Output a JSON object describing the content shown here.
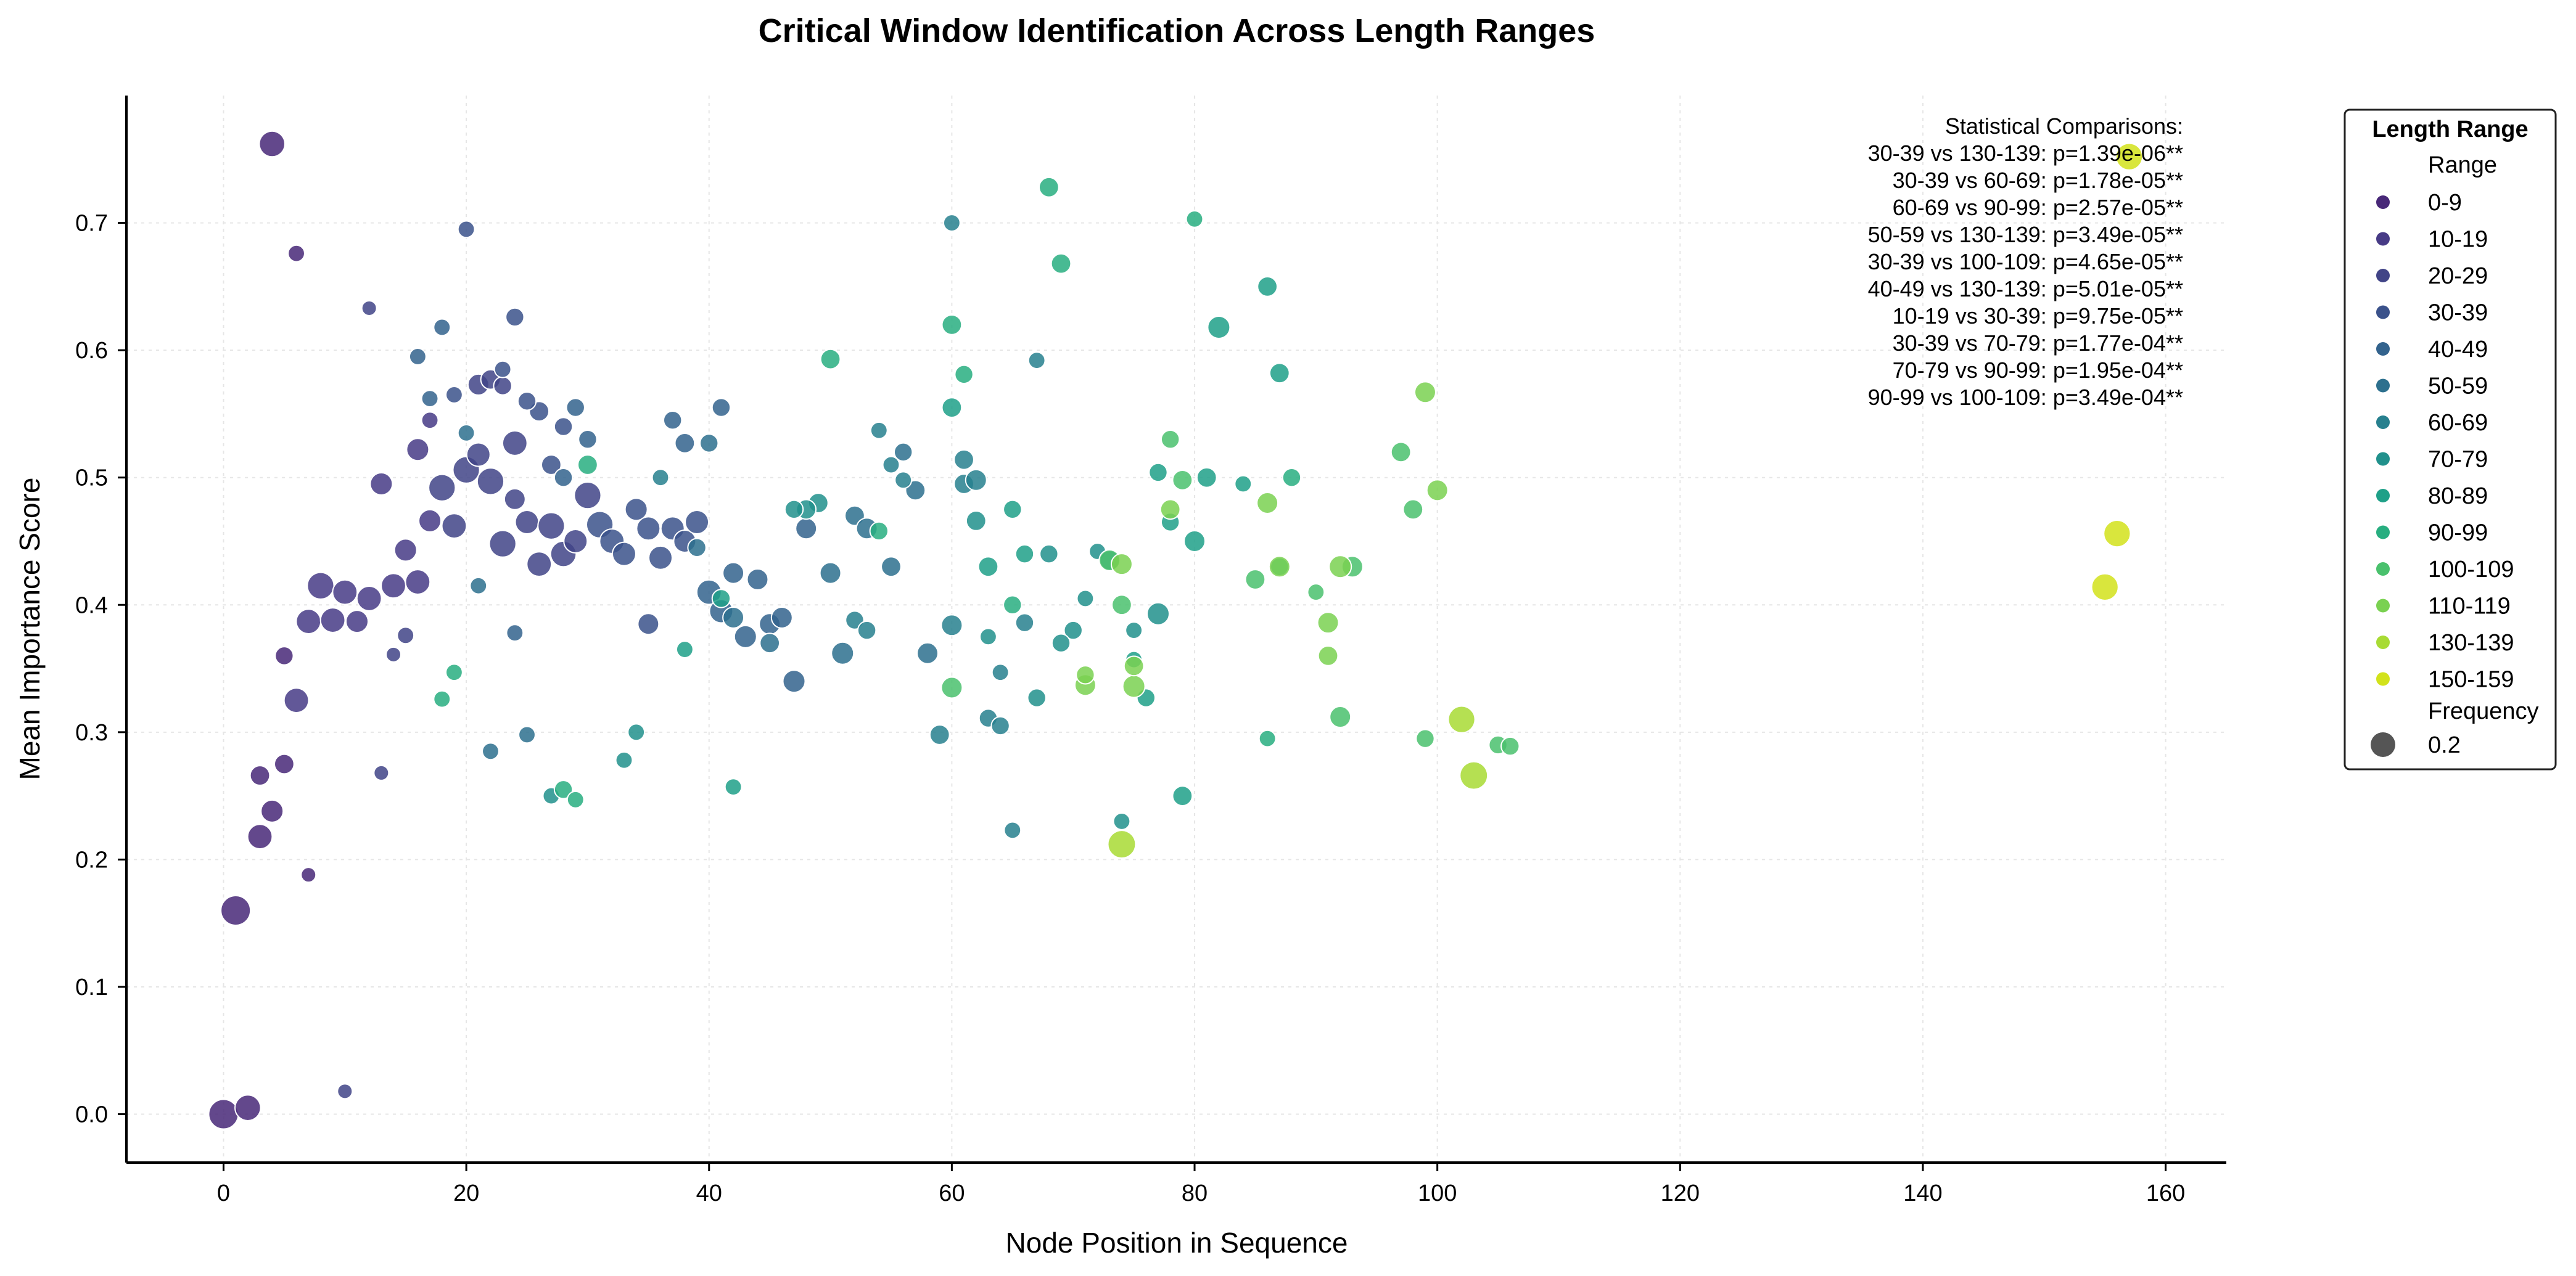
{
  "chart_data": {
    "type": "scatter",
    "title": "Critical Window Identification Across Length Ranges",
    "xlabel": "Node Position in Sequence",
    "ylabel": "Mean Importance Score",
    "xlim": [
      -8,
      165
    ],
    "ylim": [
      -0.038,
      0.8
    ],
    "x_ticks": [
      0,
      20,
      40,
      60,
      80,
      100,
      120,
      140,
      160
    ],
    "y_ticks": [
      0.0,
      0.1,
      0.2,
      0.3,
      0.4,
      0.5,
      0.6,
      0.7
    ],
    "y_tick_labels": [
      "0.0",
      "0.1",
      "0.2",
      "0.3",
      "0.4",
      "0.5",
      "0.6",
      "0.7"
    ],
    "grid": true,
    "legend": {
      "title": "Length Range",
      "placement": "outside-right",
      "subtitle_range": "Range",
      "subtitle_frequency": "Frequency",
      "frequency_example": "0.2",
      "frequency_example_value": 0.2
    },
    "annotation_title": "Statistical Comparisons:",
    "annotations": [
      "30-39 vs 130-139: p=1.39e-06**",
      "30-39 vs 60-69: p=1.78e-05**",
      "60-69 vs 90-99: p=2.57e-05**",
      "50-59 vs 130-139: p=3.49e-05**",
      "30-39 vs 100-109: p=4.65e-05**",
      "40-49 vs 130-139: p=5.01e-05**",
      "10-19 vs 30-39: p=9.75e-05**",
      "30-39 vs 70-79: p=1.77e-04**",
      "70-79 vs 90-99: p=1.95e-04**",
      "90-99 vs 100-109: p=3.49e-04**"
    ],
    "series": [
      {
        "name": "0-9",
        "color": "#482878",
        "points": [
          [
            0,
            0.0,
            0.16
          ],
          [
            2,
            0.005,
            0.12
          ],
          [
            1,
            0.16,
            0.16
          ],
          [
            3,
            0.218,
            0.11
          ],
          [
            4,
            0.238,
            0.09
          ],
          [
            3,
            0.266,
            0.07
          ],
          [
            5,
            0.275,
            0.07
          ],
          [
            5,
            0.36,
            0.06
          ],
          [
            7,
            0.188,
            0.04
          ],
          [
            6,
            0.676,
            0.05
          ],
          [
            4,
            0.762,
            0.12
          ]
        ]
      },
      {
        "name": "10-19",
        "color": "#473b86",
        "points": [
          [
            6,
            0.325,
            0.11
          ],
          [
            7,
            0.387,
            0.11
          ],
          [
            8,
            0.415,
            0.13
          ],
          [
            9,
            0.388,
            0.11
          ],
          [
            10,
            0.41,
            0.11
          ],
          [
            11,
            0.387,
            0.09
          ],
          [
            12,
            0.405,
            0.11
          ],
          [
            14,
            0.415,
            0.11
          ],
          [
            15,
            0.443,
            0.09
          ],
          [
            16,
            0.418,
            0.11
          ],
          [
            17,
            0.466,
            0.09
          ],
          [
            13,
            0.495,
            0.09
          ],
          [
            16,
            0.522,
            0.09
          ],
          [
            17,
            0.545,
            0.05
          ]
        ]
      },
      {
        "name": "20-29",
        "color": "#414487",
        "points": [
          [
            18,
            0.492,
            0.13
          ],
          [
            19,
            0.462,
            0.11
          ],
          [
            20,
            0.506,
            0.13
          ],
          [
            21,
            0.518,
            0.1
          ],
          [
            22,
            0.497,
            0.13
          ],
          [
            23,
            0.448,
            0.13
          ],
          [
            24,
            0.527,
            0.11
          ],
          [
            25,
            0.465,
            0.1
          ],
          [
            26,
            0.432,
            0.11
          ],
          [
            27,
            0.462,
            0.13
          ],
          [
            28,
            0.44,
            0.12
          ],
          [
            29,
            0.45,
            0.1
          ],
          [
            30,
            0.486,
            0.13
          ],
          [
            24,
            0.483,
            0.08
          ],
          [
            21,
            0.573,
            0.08
          ],
          [
            22,
            0.577,
            0.07
          ],
          [
            23,
            0.572,
            0.06
          ],
          [
            15,
            0.376,
            0.05
          ],
          [
            14,
            0.361,
            0.04
          ],
          [
            13,
            0.268,
            0.04
          ],
          [
            12,
            0.633,
            0.04
          ],
          [
            10,
            0.018,
            0.04
          ]
        ]
      },
      {
        "name": "30-39",
        "color": "#3b528b",
        "points": [
          [
            31,
            0.463,
            0.13
          ],
          [
            32,
            0.45,
            0.11
          ],
          [
            33,
            0.44,
            0.1
          ],
          [
            34,
            0.475,
            0.09
          ],
          [
            35,
            0.46,
            0.1
          ],
          [
            36,
            0.437,
            0.1
          ],
          [
            37,
            0.46,
            0.1
          ],
          [
            38,
            0.45,
            0.09
          ],
          [
            39,
            0.465,
            0.1
          ],
          [
            26,
            0.552,
            0.07
          ],
          [
            27,
            0.51,
            0.07
          ],
          [
            28,
            0.54,
            0.06
          ],
          [
            25,
            0.56,
            0.06
          ],
          [
            24,
            0.626,
            0.06
          ],
          [
            20,
            0.695,
            0.05
          ],
          [
            19,
            0.565,
            0.05
          ],
          [
            23,
            0.585,
            0.05
          ],
          [
            35,
            0.385,
            0.08
          ]
        ]
      },
      {
        "name": "40-49",
        "color": "#33638d",
        "points": [
          [
            40,
            0.41,
            0.11
          ],
          [
            41,
            0.395,
            0.1
          ],
          [
            42,
            0.425,
            0.08
          ],
          [
            43,
            0.375,
            0.09
          ],
          [
            44,
            0.42,
            0.08
          ],
          [
            45,
            0.385,
            0.08
          ],
          [
            46,
            0.39,
            0.08
          ],
          [
            47,
            0.34,
            0.09
          ],
          [
            48,
            0.46,
            0.08
          ],
          [
            41,
            0.555,
            0.06
          ],
          [
            37,
            0.545,
            0.06
          ],
          [
            38,
            0.527,
            0.07
          ],
          [
            18,
            0.618,
            0.05
          ],
          [
            16,
            0.595,
            0.05
          ],
          [
            17,
            0.562,
            0.05
          ],
          [
            24,
            0.378,
            0.05
          ],
          [
            28,
            0.5,
            0.06
          ],
          [
            29,
            0.555,
            0.06
          ],
          [
            30,
            0.53,
            0.06
          ]
        ]
      },
      {
        "name": "50-59",
        "color": "#2d708e",
        "points": [
          [
            50,
            0.425,
            0.08
          ],
          [
            51,
            0.362,
            0.09
          ],
          [
            52,
            0.47,
            0.07
          ],
          [
            53,
            0.46,
            0.08
          ],
          [
            55,
            0.43,
            0.07
          ],
          [
            57,
            0.49,
            0.07
          ],
          [
            58,
            0.362,
            0.08
          ],
          [
            56,
            0.52,
            0.06
          ],
          [
            21,
            0.415,
            0.05
          ],
          [
            22,
            0.285,
            0.05
          ],
          [
            25,
            0.298,
            0.05
          ],
          [
            39,
            0.445,
            0.06
          ],
          [
            40,
            0.527,
            0.06
          ],
          [
            42,
            0.39,
            0.08
          ],
          [
            45,
            0.37,
            0.07
          ],
          [
            20,
            0.535,
            0.05
          ]
        ]
      },
      {
        "name": "60-69",
        "color": "#27808e",
        "points": [
          [
            60,
            0.384,
            0.08
          ],
          [
            61,
            0.495,
            0.07
          ],
          [
            62,
            0.498,
            0.08
          ],
          [
            63,
            0.311,
            0.06
          ],
          [
            64,
            0.347,
            0.05
          ],
          [
            66,
            0.386,
            0.06
          ],
          [
            67,
            0.592,
            0.05
          ],
          [
            60,
            0.7,
            0.05
          ],
          [
            65,
            0.223,
            0.05
          ],
          [
            59,
            0.298,
            0.07
          ],
          [
            61,
            0.514,
            0.07
          ],
          [
            64,
            0.305,
            0.06
          ],
          [
            52,
            0.388,
            0.06
          ],
          [
            53,
            0.38,
            0.06
          ],
          [
            54,
            0.537,
            0.05
          ],
          [
            55,
            0.51,
            0.05
          ],
          [
            56,
            0.498,
            0.05
          ],
          [
            36,
            0.5,
            0.05
          ]
        ]
      },
      {
        "name": "70-79",
        "color": "#21918c",
        "points": [
          [
            70,
            0.38,
            0.06
          ],
          [
            72,
            0.442,
            0.05
          ],
          [
            73,
            0.435,
            0.07
          ],
          [
            74,
            0.23,
            0.05
          ],
          [
            75,
            0.38,
            0.05
          ],
          [
            77,
            0.393,
            0.09
          ],
          [
            68,
            0.44,
            0.06
          ],
          [
            69,
            0.37,
            0.06
          ],
          [
            71,
            0.405,
            0.05
          ],
          [
            67,
            0.327,
            0.06
          ],
          [
            62,
            0.466,
            0.07
          ],
          [
            63,
            0.375,
            0.05
          ],
          [
            49,
            0.48,
            0.07
          ],
          [
            48,
            0.475,
            0.07
          ],
          [
            47,
            0.475,
            0.06
          ],
          [
            33,
            0.278,
            0.05
          ],
          [
            34,
            0.3,
            0.05
          ],
          [
            27,
            0.25,
            0.05
          ]
        ]
      },
      {
        "name": "80-89",
        "color": "#1fa088",
        "points": [
          [
            79,
            0.25,
            0.07
          ],
          [
            80,
            0.45,
            0.08
          ],
          [
            81,
            0.5,
            0.07
          ],
          [
            82,
            0.618,
            0.09
          ],
          [
            84,
            0.495,
            0.05
          ],
          [
            86,
            0.65,
            0.07
          ],
          [
            87,
            0.582,
            0.07
          ],
          [
            77,
            0.504,
            0.06
          ],
          [
            78,
            0.465,
            0.06
          ],
          [
            76,
            0.327,
            0.06
          ],
          [
            75,
            0.357,
            0.05
          ],
          [
            66,
            0.44,
            0.06
          ],
          [
            63,
            0.43,
            0.07
          ],
          [
            65,
            0.475,
            0.06
          ],
          [
            60,
            0.555,
            0.07
          ],
          [
            41,
            0.405,
            0.06
          ],
          [
            42,
            0.257,
            0.05
          ],
          [
            38,
            0.365,
            0.05
          ]
        ]
      },
      {
        "name": "90-99",
        "color": "#28ae80",
        "points": [
          [
            68,
            0.728,
            0.07
          ],
          [
            69,
            0.668,
            0.07
          ],
          [
            80,
            0.703,
            0.05
          ],
          [
            86,
            0.295,
            0.05
          ],
          [
            87,
            0.43,
            0.06
          ],
          [
            88,
            0.5,
            0.06
          ],
          [
            60,
            0.62,
            0.07
          ],
          [
            50,
            0.593,
            0.07
          ],
          [
            19,
            0.347,
            0.05
          ],
          [
            18,
            0.326,
            0.05
          ],
          [
            28,
            0.255,
            0.06
          ],
          [
            29,
            0.247,
            0.05
          ],
          [
            30,
            0.51,
            0.07
          ],
          [
            54,
            0.458,
            0.06
          ],
          [
            65,
            0.4,
            0.06
          ],
          [
            61,
            0.581,
            0.06
          ]
        ]
      },
      {
        "name": "100-109",
        "color": "#4ac16d",
        "points": [
          [
            105,
            0.29,
            0.06
          ],
          [
            106,
            0.289,
            0.06
          ],
          [
            93,
            0.43,
            0.08
          ],
          [
            92,
            0.312,
            0.08
          ],
          [
            90,
            0.41,
            0.05
          ],
          [
            85,
            0.42,
            0.07
          ],
          [
            79,
            0.498,
            0.07
          ],
          [
            78,
            0.53,
            0.06
          ],
          [
            74,
            0.4,
            0.07
          ],
          [
            60,
            0.335,
            0.08
          ],
          [
            73,
            0.435,
            0.08
          ],
          [
            99,
            0.295,
            0.06
          ],
          [
            97,
            0.52,
            0.07
          ],
          [
            98,
            0.475,
            0.07
          ]
        ]
      },
      {
        "name": "110-119",
        "color": "#7ad151",
        "points": [
          [
            99,
            0.567,
            0.08
          ],
          [
            100,
            0.49,
            0.08
          ],
          [
            86,
            0.48,
            0.08
          ],
          [
            87,
            0.43,
            0.08
          ],
          [
            91,
            0.386,
            0.08
          ],
          [
            92,
            0.43,
            0.09
          ],
          [
            74,
            0.432,
            0.08
          ],
          [
            75,
            0.336,
            0.09
          ],
          [
            71,
            0.337,
            0.08
          ],
          [
            75,
            0.352,
            0.07
          ],
          [
            78,
            0.475,
            0.07
          ],
          [
            91,
            0.36,
            0.07
          ],
          [
            71,
            0.345,
            0.06
          ]
        ]
      },
      {
        "name": "130-139",
        "color": "#a8db34",
        "points": [
          [
            74,
            0.212,
            0.14
          ],
          [
            102,
            0.31,
            0.13
          ],
          [
            103,
            0.266,
            0.14
          ]
        ]
      },
      {
        "name": "150-159",
        "color": "#d2e21b",
        "points": [
          [
            155,
            0.414,
            0.13
          ],
          [
            156,
            0.456,
            0.13
          ],
          [
            157,
            0.752,
            0.13
          ]
        ]
      }
    ]
  }
}
